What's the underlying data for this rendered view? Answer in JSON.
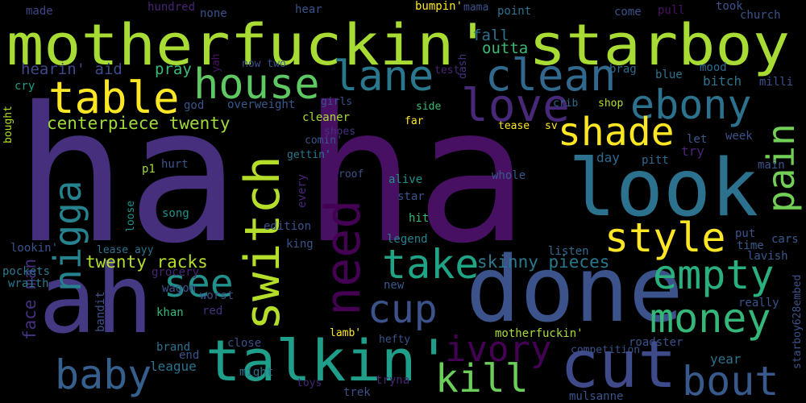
{
  "wordcloud": {
    "background": "#000000",
    "words": [
      {
        "text": "ha",
        "color": "#46307e"
      },
      {
        "text": "ha",
        "color": "#471063"
      },
      {
        "text": "motherfuckin' starboy",
        "color": "#a8db34"
      },
      {
        "text": "done",
        "color": "#3b528b"
      },
      {
        "text": "ah",
        "color": "#443983"
      },
      {
        "text": "look",
        "color": "#2c728e"
      },
      {
        "text": "talkin'",
        "color": "#1f9e89"
      },
      {
        "text": "cut",
        "color": "#3e4a89"
      },
      {
        "text": "switch",
        "color": "#b5de2b"
      },
      {
        "text": "need",
        "color": "#440154"
      },
      {
        "text": "house",
        "color": "#5ec962"
      },
      {
        "text": "lane",
        "color": "#2a788e"
      },
      {
        "text": "clean",
        "color": "#31688e"
      },
      {
        "text": "love",
        "color": "#482878"
      },
      {
        "text": "table",
        "color": "#fde725"
      },
      {
        "text": "ebony",
        "color": "#2c728e"
      },
      {
        "text": "shade",
        "color": "#fde725"
      },
      {
        "text": "pain",
        "color": "#73d056"
      },
      {
        "text": "nigga",
        "color": "#26828e"
      },
      {
        "text": "style",
        "color": "#fde725"
      },
      {
        "text": "take",
        "color": "#20a486"
      },
      {
        "text": "empty",
        "color": "#2ab07f"
      },
      {
        "text": "see",
        "color": "#21918c"
      },
      {
        "text": "cup",
        "color": "#3b528b"
      },
      {
        "text": "money",
        "color": "#35b779"
      },
      {
        "text": "ivory",
        "color": "#440154"
      },
      {
        "text": "baby",
        "color": "#355f8d"
      },
      {
        "text": "kill",
        "color": "#6ccd5a"
      },
      {
        "text": "bout",
        "color": "#38598c"
      },
      {
        "text": "centerpiece twenty",
        "color": "#9fda3a"
      },
      {
        "text": "twenty racks",
        "color": "#b5de2b"
      },
      {
        "text": "skinny pieces",
        "color": "#2a788e"
      },
      {
        "text": "face man",
        "color": "#46307e"
      },
      {
        "text": "hearin' aid",
        "color": "#3e4a89"
      },
      {
        "text": "pray",
        "color": "#37b878"
      },
      {
        "text": "outta",
        "color": "#3aba76"
      },
      {
        "text": "fall",
        "color": "#2d708e"
      },
      {
        "text": "made",
        "color": "#414487"
      },
      {
        "text": "hundred",
        "color": "#482475"
      },
      {
        "text": "none",
        "color": "#3b528b"
      },
      {
        "text": "hear",
        "color": "#3b528b"
      },
      {
        "text": "bumpin'",
        "color": "#fde725"
      },
      {
        "text": "mama",
        "color": "#3b528b"
      },
      {
        "text": "point",
        "color": "#2c728e"
      },
      {
        "text": "come",
        "color": "#3b528b"
      },
      {
        "text": "pull",
        "color": "#471063"
      },
      {
        "text": "took",
        "color": "#3b528b"
      },
      {
        "text": "church",
        "color": "#3b528b"
      },
      {
        "text": "dash",
        "color": "#46307e"
      },
      {
        "text": "test",
        "color": "#482475"
      },
      {
        "text": "yah",
        "color": "#471063"
      },
      {
        "text": "now two",
        "color": "#3b528b"
      },
      {
        "text": "brag",
        "color": "#31688e"
      },
      {
        "text": "mood",
        "color": "#31688e"
      },
      {
        "text": "blue",
        "color": "#2c728e"
      },
      {
        "text": "bitch",
        "color": "#2c728e"
      },
      {
        "text": "milli",
        "color": "#3b528b"
      },
      {
        "text": "cry",
        "color": "#1f9e89"
      },
      {
        "text": "god",
        "color": "#3b528b"
      },
      {
        "text": "overweight",
        "color": "#38598c"
      },
      {
        "text": "girls",
        "color": "#3b528b"
      },
      {
        "text": "side",
        "color": "#3aba76"
      },
      {
        "text": "crib",
        "color": "#31688e"
      },
      {
        "text": "shop",
        "color": "#b5de2b"
      },
      {
        "text": "bought",
        "color": "#b5de2b"
      },
      {
        "text": "cleaner",
        "color": "#a8db34"
      },
      {
        "text": "shoes",
        "color": "#46307e"
      },
      {
        "text": "far",
        "color": "#fde725"
      },
      {
        "text": "tease",
        "color": "#fde725"
      },
      {
        "text": "sv",
        "color": "#fde725"
      },
      {
        "text": "comin'",
        "color": "#3b528b"
      },
      {
        "text": "gettin'",
        "color": "#2a788e"
      },
      {
        "text": "let",
        "color": "#38598c"
      },
      {
        "text": "week",
        "color": "#3b528b"
      },
      {
        "text": "try",
        "color": "#482475"
      },
      {
        "text": "day",
        "color": "#31688e"
      },
      {
        "text": "pitt",
        "color": "#31688e"
      },
      {
        "text": "main",
        "color": "#3b528b"
      },
      {
        "text": "p1",
        "color": "#9fda3a"
      },
      {
        "text": "hurt",
        "color": "#3b528b"
      },
      {
        "text": "roof",
        "color": "#3b528b"
      },
      {
        "text": "alive",
        "color": "#21918c"
      },
      {
        "text": "whole",
        "color": "#38598c"
      },
      {
        "text": "every",
        "color": "#482878"
      },
      {
        "text": "star",
        "color": "#3b528b"
      },
      {
        "text": "song",
        "color": "#21918c"
      },
      {
        "text": "loose",
        "color": "#21918c"
      },
      {
        "text": "edition",
        "color": "#3b528b"
      },
      {
        "text": "hit",
        "color": "#35b779"
      },
      {
        "text": "put",
        "color": "#3b528b"
      },
      {
        "text": "king",
        "color": "#3b528b"
      },
      {
        "text": "legend",
        "color": "#26828e"
      },
      {
        "text": "time",
        "color": "#38598c"
      },
      {
        "text": "cars",
        "color": "#38598c"
      },
      {
        "text": "lookin'",
        "color": "#3b528b"
      },
      {
        "text": "lease ayy",
        "color": "#2c728e"
      },
      {
        "text": "listen",
        "color": "#31688e"
      },
      {
        "text": "lavish",
        "color": "#38598c"
      },
      {
        "text": "pockets",
        "color": "#2a788e"
      },
      {
        "text": "wraith",
        "color": "#2a788e"
      },
      {
        "text": "grocery",
        "color": "#482475"
      },
      {
        "text": "new",
        "color": "#38598c"
      },
      {
        "text": "wagon",
        "color": "#3b528b"
      },
      {
        "text": "starboy628embed",
        "color": "#3b528b"
      },
      {
        "text": "really",
        "color": "#3b528b"
      },
      {
        "text": "bandit",
        "color": "#3b528b"
      },
      {
        "text": "worst",
        "color": "#3b528b"
      },
      {
        "text": "khan",
        "color": "#35b779"
      },
      {
        "text": "red",
        "color": "#46307e"
      },
      {
        "text": "lamb'",
        "color": "#fde725"
      },
      {
        "text": "brand",
        "color": "#2c728e"
      },
      {
        "text": "hefty",
        "color": "#3b528b"
      },
      {
        "text": "motherfuckin'",
        "color": "#a8db34"
      },
      {
        "text": "close",
        "color": "#3b528b"
      },
      {
        "text": "roadster",
        "color": "#3b528b"
      },
      {
        "text": "end",
        "color": "#3b528b"
      },
      {
        "text": "competition",
        "color": "#3b528b"
      },
      {
        "text": "year",
        "color": "#2c728e"
      },
      {
        "text": "league",
        "color": "#2c728e"
      },
      {
        "text": "might",
        "color": "#2c728e"
      },
      {
        "text": "toys",
        "color": "#482475"
      },
      {
        "text": "trek",
        "color": "#3b528b"
      },
      {
        "text": "tryna",
        "color": "#482475"
      },
      {
        "text": "mulsanne",
        "color": "#3b528b"
      }
    ]
  }
}
